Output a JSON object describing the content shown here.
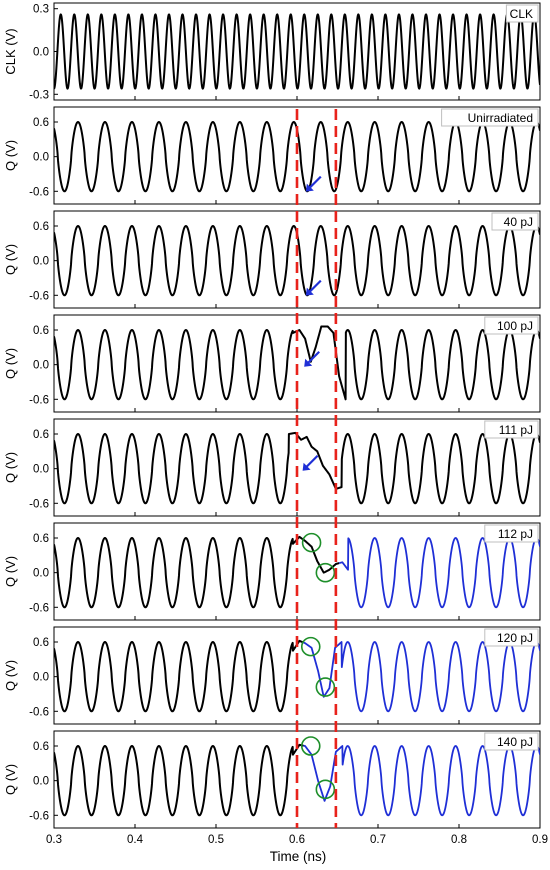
{
  "colors": {
    "axis": "#000000",
    "black_trace": "#000000",
    "blue_trace": "#1f2fd6",
    "marker_line": "#e8221b",
    "arrow": "#1f2fd6",
    "circle": "#1e8f2a"
  },
  "chart_data": {
    "type": "line",
    "xlabel": "Time (ns)",
    "x_ticks": [
      "0.3",
      "0.4",
      "0.5",
      "0.6",
      "0.7",
      "0.8",
      "0.9"
    ],
    "xlim": [
      0.3,
      0.9
    ],
    "markers_ns": [
      0.6,
      0.648
    ],
    "clk_period_ns": 0.0167,
    "q_period_ns": 0.0333,
    "panels": [
      {
        "label": "CLK",
        "ylabel": "CLK (V)",
        "y_ticks": [
          "0.3",
          "0.0",
          "-0.3"
        ],
        "ylim": [
          -0.34,
          0.34
        ],
        "kind": "clk",
        "amplitude": 0.26
      },
      {
        "label": "Unirradiated",
        "ylabel": "Q (V)",
        "y_ticks": [
          "0.6",
          "0.0",
          "-0.6"
        ],
        "ylim": [
          -0.82,
          0.86
        ],
        "kind": "q",
        "amplitude": 0.6,
        "annotations": [
          {
            "type": "arrow",
            "x": 0.622,
            "y": -0.45
          }
        ]
      },
      {
        "label": "40 pJ",
        "ylabel": "Q (V)",
        "y_ticks": [
          "0.6",
          "0.0",
          "-0.6"
        ],
        "ylim": [
          -0.82,
          0.86
        ],
        "kind": "q",
        "amplitude": 0.6,
        "annotations": [
          {
            "type": "arrow",
            "x": 0.622,
            "y": -0.45
          }
        ]
      },
      {
        "label": "100 pJ",
        "ylabel": "Q (V)",
        "y_ticks": [
          "0.6",
          "0.0",
          "-0.6"
        ],
        "ylim": [
          -0.82,
          0.86
        ],
        "kind": "q",
        "amplitude": 0.6,
        "event": {
          "x": [
            0.595,
            0.603,
            0.61,
            0.617,
            0.623,
            0.63,
            0.638,
            0.645,
            0.652,
            0.66
          ],
          "y": [
            0.55,
            0.6,
            0.45,
            0.05,
            0.3,
            0.66,
            0.66,
            0.55,
            -0.2,
            -0.6
          ]
        },
        "annotations": [
          {
            "type": "arrow",
            "x": 0.62,
            "y": 0.12
          }
        ]
      },
      {
        "label": "111 pJ",
        "ylabel": "Q (V)",
        "y_ticks": [
          "0.6",
          "0.0",
          "-0.6"
        ],
        "ylim": [
          -0.82,
          0.86
        ],
        "kind": "q",
        "amplitude": 0.6,
        "event": {
          "x": [
            0.59,
            0.598,
            0.605,
            0.612,
            0.618,
            0.625,
            0.632,
            0.64,
            0.648,
            0.655
          ],
          "y": [
            0.6,
            0.62,
            0.5,
            0.55,
            0.38,
            0.3,
            0.05,
            -0.1,
            -0.35,
            -0.32
          ]
        },
        "annotations": [
          {
            "type": "arrow",
            "x": 0.618,
            "y": 0.12
          }
        ]
      },
      {
        "label": "112 pJ",
        "ylabel": "Q (V)",
        "y_ticks": [
          "0.6",
          "0.0",
          "-0.6"
        ],
        "ylim": [
          -0.82,
          0.86
        ],
        "kind": "q",
        "amplitude": 0.6,
        "blue_after_ns": 0.652,
        "event": {
          "x": [
            0.595,
            0.603,
            0.61,
            0.618,
            0.625,
            0.633,
            0.64,
            0.648,
            0.656,
            0.663
          ],
          "y": [
            0.5,
            0.62,
            0.55,
            0.45,
            0.2,
            0.0,
            0.05,
            0.15,
            0.18,
            0.05
          ]
        },
        "annotations": [
          {
            "type": "circle",
            "x": 0.618,
            "y": 0.52
          },
          {
            "type": "circle",
            "x": 0.635,
            "y": 0.0
          }
        ]
      },
      {
        "label": "120 pJ",
        "ylabel": "Q (V)",
        "y_ticks": [
          "0.6",
          "0.0",
          "-0.6"
        ],
        "ylim": [
          -0.82,
          0.86
        ],
        "kind": "q",
        "amplitude": 0.6,
        "blue_after_ns": 0.608,
        "event": {
          "x": [
            0.595,
            0.603,
            0.61,
            0.618,
            0.626,
            0.633,
            0.64,
            0.647,
            0.655
          ],
          "y": [
            0.45,
            0.62,
            0.58,
            0.5,
            0.1,
            -0.35,
            -0.2,
            0.5,
            0.6
          ]
        },
        "annotations": [
          {
            "type": "circle",
            "x": 0.617,
            "y": 0.52
          },
          {
            "type": "circle",
            "x": 0.635,
            "y": -0.18
          }
        ]
      },
      {
        "label": "140 pJ",
        "ylabel": "Q (V)",
        "y_ticks": [
          "0.6",
          "0.0",
          "-0.6"
        ],
        "ylim": [
          -0.82,
          0.86
        ],
        "kind": "q",
        "amplitude": 0.6,
        "blue_after_ns": 0.608,
        "event": {
          "x": [
            0.595,
            0.603,
            0.61,
            0.618,
            0.626,
            0.634,
            0.641,
            0.648,
            0.656
          ],
          "y": [
            0.45,
            0.62,
            0.6,
            0.45,
            0.0,
            -0.35,
            -0.1,
            0.5,
            0.6
          ]
        },
        "annotations": [
          {
            "type": "circle",
            "x": 0.617,
            "y": 0.6
          },
          {
            "type": "circle",
            "x": 0.635,
            "y": -0.15
          }
        ]
      }
    ]
  }
}
